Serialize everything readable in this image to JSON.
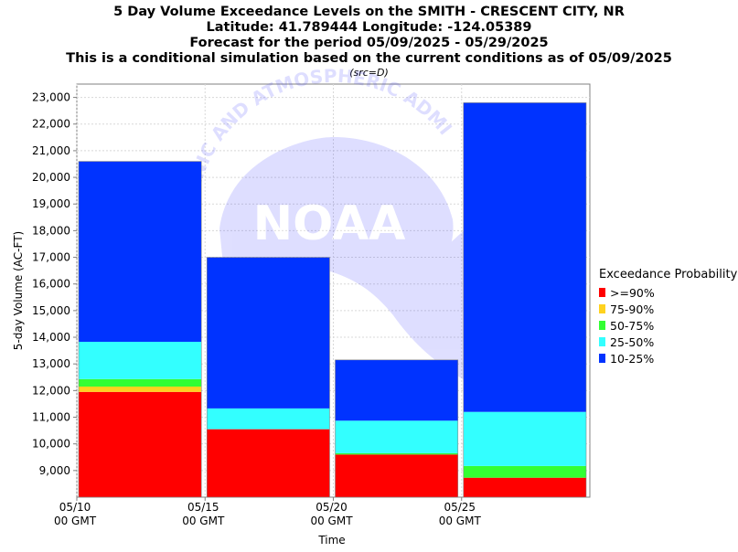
{
  "titles": [
    "5 Day Volume Exceedance Levels on the SMITH - CRESCENT CITY, NR",
    "Latitude: 41.789444 Longitude: -124.05389",
    "Forecast for the period 05/09/2025 - 05/29/2025",
    "This is a conditional simulation based on the current conditions as of 05/09/2025"
  ],
  "source_note": "(src=D)",
  "watermark": {
    "top_text": "CEANIC AND ATMOSPHERIC ADMI",
    "logo_text": "NOAA"
  },
  "chart_data": {
    "type": "bar",
    "stacked": true,
    "xlabel": "Time",
    "ylabel": "5-day Volume (AC-FT)",
    "ylim": [
      8000,
      23500
    ],
    "yticks": [
      9000,
      10000,
      11000,
      12000,
      13000,
      14000,
      15000,
      16000,
      17000,
      18000,
      19000,
      20000,
      21000,
      22000,
      23000
    ],
    "ytick_labels": [
      "9,000",
      "10,000",
      "11,000",
      "12,000",
      "13,000",
      "14,000",
      "15,000",
      "16,000",
      "17,000",
      "18,000",
      "19,000",
      "20,000",
      "21,000",
      "22,000",
      "23,000"
    ],
    "x_ticks": [
      {
        "date": "05/10",
        "sub": "00 GMT"
      },
      {
        "date": "05/15",
        "sub": "00 GMT"
      },
      {
        "date": "05/20",
        "sub": "00 GMT"
      },
      {
        "date": "05/25",
        "sub": "00 GMT"
      }
    ],
    "x_range_days": [
      "05/10",
      "05/30"
    ],
    "bars": [
      {
        "start": "05/10",
        "end": "05/15",
        "levels": [
          11950,
          12150,
          12430,
          13830,
          20600
        ]
      },
      {
        "start": "05/15",
        "end": "05/20",
        "levels": [
          10550,
          10550,
          10550,
          11330,
          17000
        ]
      },
      {
        "start": "05/20",
        "end": "05/25",
        "levels": [
          9600,
          9600,
          9650,
          10870,
          13150
        ]
      },
      {
        "start": "05/25",
        "end": "05/30",
        "levels": [
          8730,
          8730,
          9170,
          11200,
          22800
        ]
      }
    ],
    "grid": true,
    "legend": {
      "title": "Exceedance Probability",
      "position": "right",
      "items": [
        {
          "label": ">=90%",
          "color": "#ff0000"
        },
        {
          "label": "75-90%",
          "color": "#ffd21f"
        },
        {
          "label": "50-75%",
          "color": "#33ff33"
        },
        {
          "label": "25-50%",
          "color": "#33ffff"
        },
        {
          "label": "10-25%",
          "color": "#0033ff"
        }
      ]
    }
  }
}
